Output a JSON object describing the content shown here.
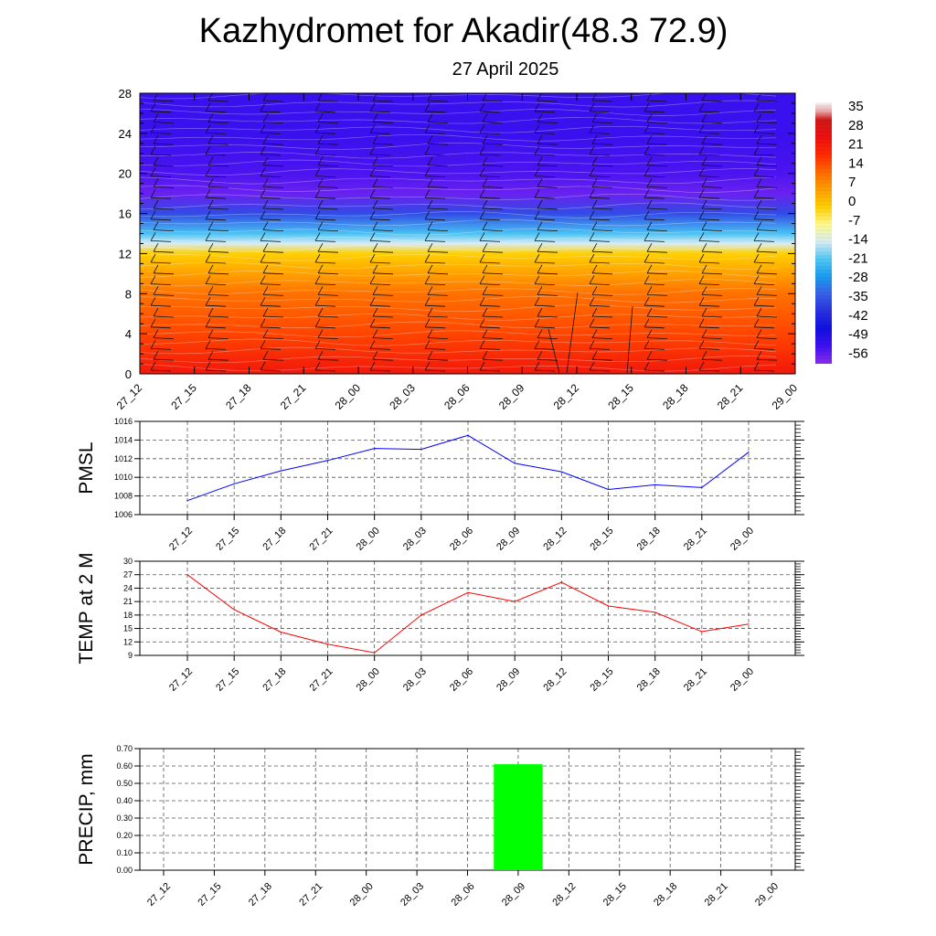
{
  "title": "Kazhydromet for Akadir(48.3 72.9)",
  "subtitle": "27 April 2025",
  "time_labels": [
    "27_12",
    "27_15",
    "27_18",
    "27_21",
    "28_00",
    "28_03",
    "28_06",
    "28_09",
    "28_12",
    "28_15",
    "28_18",
    "28_21",
    "29_00"
  ],
  "chart_data": [
    {
      "type": "heatmap",
      "name": "",
      "x": [
        "27_12",
        "27_15",
        "27_18",
        "27_21",
        "28_00",
        "28_03",
        "28_06",
        "28_09",
        "28_12",
        "28_15",
        "28_18",
        "28_21",
        "29_00"
      ],
      "yticks": [
        0,
        4,
        8,
        12,
        16,
        20,
        24,
        28
      ],
      "ylim": [
        0,
        28
      ],
      "colorbar_ticks": [
        35,
        28,
        21,
        14,
        7,
        0,
        -7,
        -14,
        -21,
        -28,
        -35,
        -42,
        -49,
        -56
      ],
      "colorbar_range": [
        -63,
        42
      ],
      "temperature_profile": [
        {
          "height": 0,
          "value": 26
        },
        {
          "height": 4,
          "value": 18
        },
        {
          "height": 8,
          "value": 13
        },
        {
          "height": 12,
          "value": 0
        },
        {
          "height": 13,
          "value": -14
        },
        {
          "height": 14,
          "value": -22
        },
        {
          "height": 16,
          "value": -38
        },
        {
          "height": 18,
          "value": -60
        },
        {
          "height": 20,
          "value": -57
        },
        {
          "height": 24,
          "value": -55
        },
        {
          "height": 28,
          "value": -55
        }
      ],
      "wind_barbs": true
    },
    {
      "type": "line",
      "ylabel": "PMSL",
      "categories": [
        "27_12",
        "27_15",
        "27_18",
        "27_21",
        "28_00",
        "28_03",
        "28_06",
        "28_09",
        "28_12",
        "28_15",
        "28_18",
        "28_21",
        "29_00"
      ],
      "values": [
        1007.5,
        1009.3,
        1010.7,
        1011.8,
        1013.1,
        1013.0,
        1014.5,
        1011.5,
        1010.6,
        1008.7,
        1009.2,
        1008.9,
        1012.7
      ],
      "ylim": [
        1006,
        1016
      ],
      "yticks": [
        1006,
        1008,
        1010,
        1012,
        1014,
        1016
      ],
      "color": "#0000ff"
    },
    {
      "type": "line",
      "ylabel": "TEMP at 2 M",
      "categories": [
        "27_12",
        "27_15",
        "27_18",
        "27_21",
        "28_00",
        "28_03",
        "28_06",
        "28_09",
        "28_12",
        "28_15",
        "28_18",
        "28_21",
        "29_00"
      ],
      "values": [
        27.0,
        19.2,
        14.2,
        11.5,
        9.6,
        18.0,
        23.0,
        21.0,
        25.3,
        20.0,
        18.6,
        14.3,
        16.0
      ],
      "ylim": [
        9,
        30
      ],
      "yticks": [
        9,
        12,
        15,
        18,
        21,
        24,
        27,
        30
      ],
      "color": "#ff0000"
    },
    {
      "type": "bar",
      "ylabel": "PRECIP, mm",
      "categories": [
        "27_12",
        "27_15",
        "27_18",
        "27_21",
        "28_00",
        "28_03",
        "28_06",
        "28_09",
        "28_12",
        "28_15",
        "28_18",
        "28_21",
        "29_00"
      ],
      "values": [
        0,
        0,
        0,
        0,
        0,
        0,
        0,
        0.61,
        0,
        0,
        0,
        0,
        0
      ],
      "ylim": [
        0,
        0.7
      ],
      "yticks": [
        "0.00",
        "0.10",
        "0.20",
        "0.30",
        "0.40",
        "0.50",
        "0.60",
        "0.70"
      ],
      "color": "#00ff00"
    }
  ]
}
